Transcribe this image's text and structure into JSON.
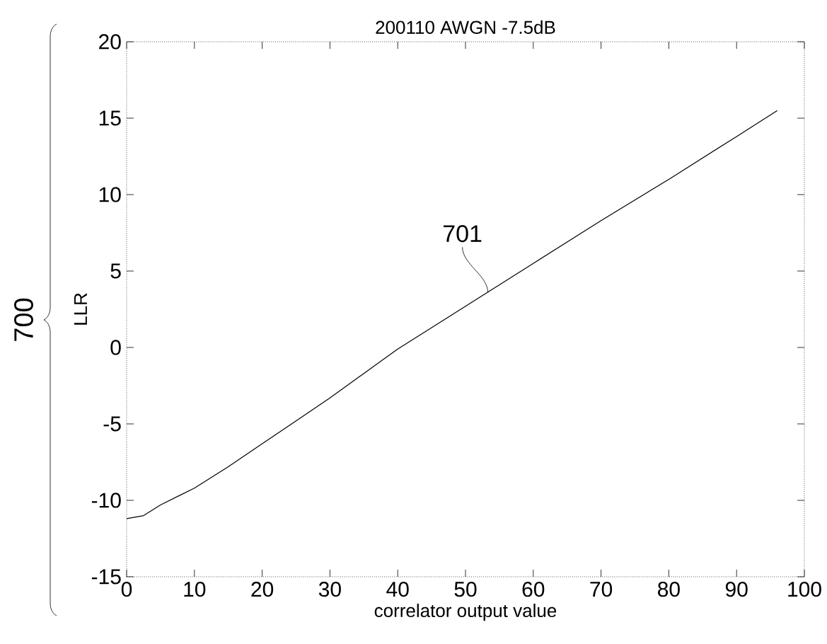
{
  "chart_data": {
    "type": "line",
    "title": "200110 AWGN -7.5dB",
    "xlabel": "correlator output value",
    "ylabel": "LLR",
    "x": [
      0,
      2.5,
      5,
      10,
      15,
      20,
      25,
      30,
      35,
      40,
      50,
      60,
      70,
      80,
      90,
      96
    ],
    "series": [
      {
        "color": "#000000",
        "values": [
          -11.2,
          -11.0,
          -10.3,
          -9.2,
          -7.8,
          -6.3,
          -4.8,
          -3.3,
          -1.7,
          -0.1,
          2.7,
          5.5,
          8.3,
          11.0,
          13.8,
          15.5
        ]
      }
    ],
    "xlim": [
      0,
      100
    ],
    "ylim": [
      -15,
      20
    ],
    "xticks": [
      0,
      10,
      20,
      30,
      40,
      50,
      60,
      70,
      80,
      90,
      100
    ],
    "yticks": [
      -15,
      -10,
      -5,
      0,
      5,
      10,
      15,
      20
    ],
    "grid": false,
    "marker": "none",
    "line_style": "solid",
    "annotations": [
      {
        "text": "701",
        "x": 53.3,
        "y": 3.6
      },
      "700"
    ]
  }
}
